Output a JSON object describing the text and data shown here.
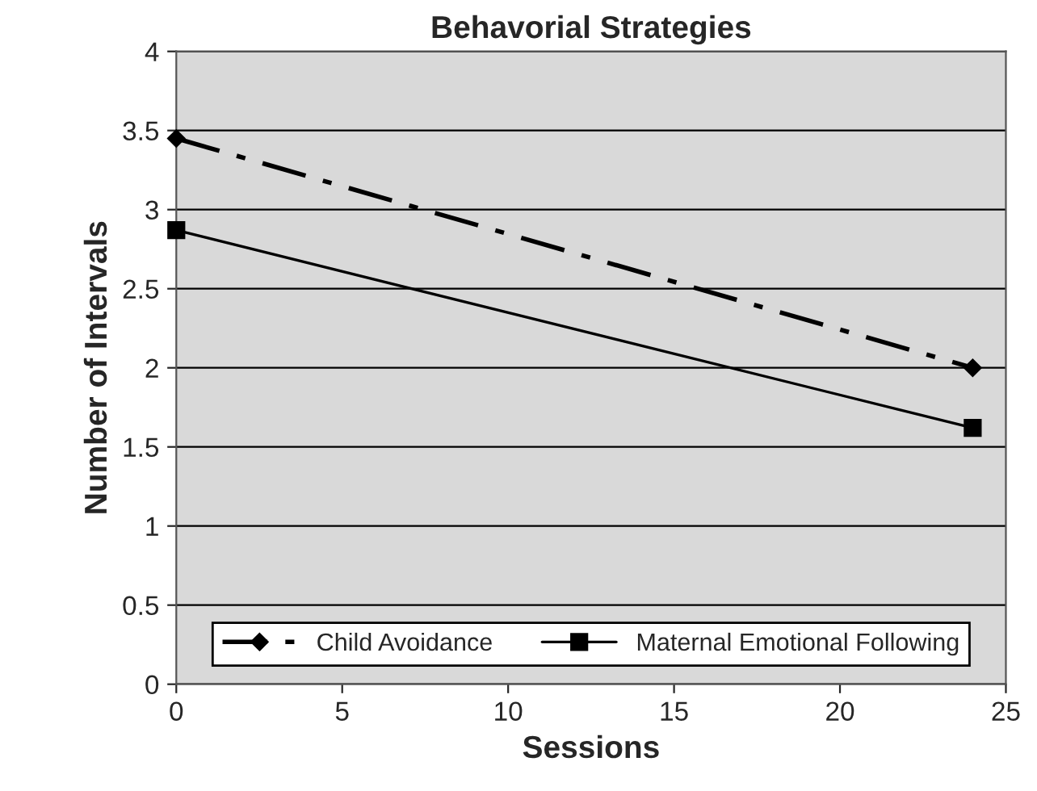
{
  "chart_data": {
    "type": "line",
    "title": "Behavorial Strategies",
    "xlabel": "Sessions",
    "ylabel": "Number of Intervals",
    "xlim": [
      0,
      25
    ],
    "xticks": [
      0,
      5,
      10,
      15,
      20,
      25
    ],
    "ylim": [
      0,
      4
    ],
    "yticks": [
      0,
      0.5,
      1,
      1.5,
      2,
      2.5,
      3,
      3.5,
      4
    ],
    "grid": "y",
    "legend": "bottom",
    "x": [
      0,
      24
    ],
    "series": [
      {
        "name": "Child Avoidance",
        "color": "#000000",
        "values": [
          3.45,
          2.0
        ],
        "marker": "diamond",
        "line_style": "dashed"
      },
      {
        "name": "Maternal Emotional Following",
        "color": "#000000",
        "values": [
          2.87,
          1.62
        ],
        "marker": "square",
        "line_style": "solid"
      }
    ]
  }
}
